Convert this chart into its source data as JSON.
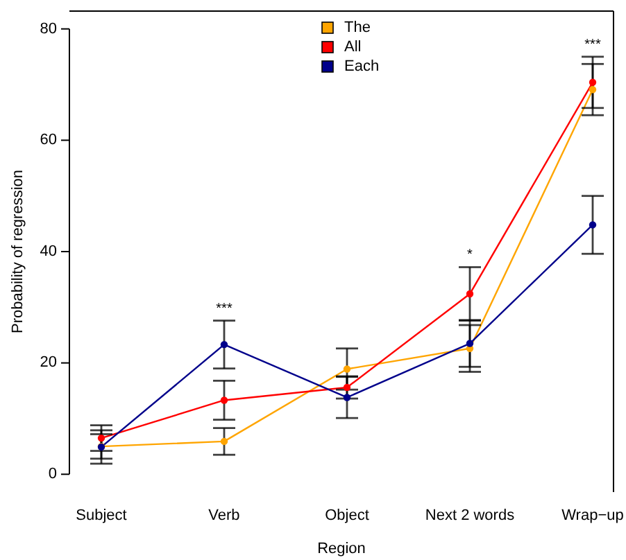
{
  "chart_data": {
    "type": "line",
    "xlabel": "Region",
    "ylabel": "Probability of regression",
    "categories": [
      "Subject",
      "Verb",
      "Object",
      "Next 2 words",
      "Wrap−up"
    ],
    "ylim": [
      -3.2,
      83.2
    ],
    "yticks": [
      0,
      20,
      40,
      60,
      80
    ],
    "grid": false,
    "legend": "top",
    "marker": "circle",
    "line_style": "solid",
    "series": [
      {
        "name": "The",
        "color": "#ffa500",
        "values": [
          5.0,
          5.9,
          18.9,
          22.6,
          69.1
        ],
        "errors": [
          2.2,
          2.4,
          3.7,
          4.2,
          4.6
        ]
      },
      {
        "name": "All",
        "color": "#ff0000",
        "values": [
          6.5,
          13.3,
          15.6,
          32.4,
          70.4
        ],
        "errors": [
          2.3,
          3.5,
          2.0,
          4.8,
          4.6
        ]
      },
      {
        "name": "Each",
        "color": "#00008b",
        "values": [
          4.9,
          23.3,
          13.8,
          23.5,
          44.8
        ],
        "errors": [
          3.0,
          4.3,
          3.7,
          4.2,
          5.2
        ]
      }
    ],
    "annotations": [
      {
        "text": "***",
        "x": "Verb",
        "y": 27.6
      },
      {
        "text": "*",
        "x": "Next 2 words",
        "y": 37.2
      },
      {
        "text": "***",
        "x": "Wrap−up",
        "y": 75.0
      }
    ]
  }
}
